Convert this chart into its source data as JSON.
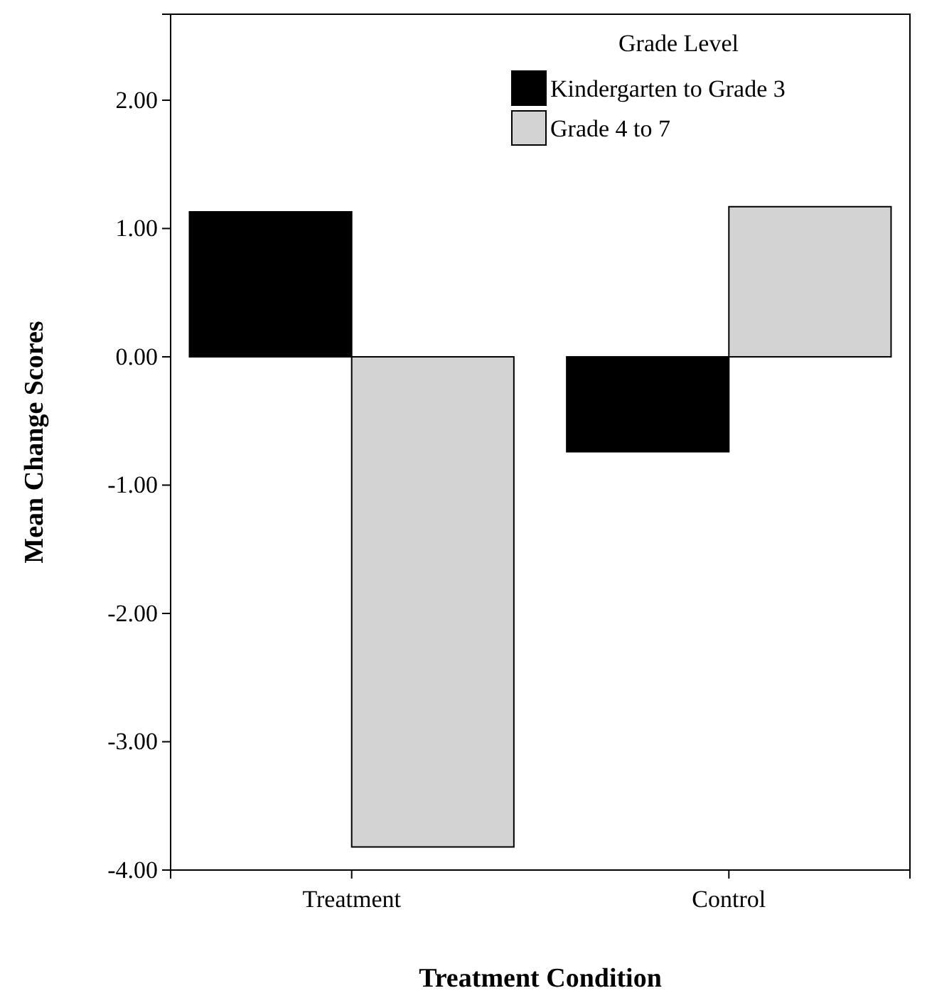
{
  "chart_data": {
    "type": "bar",
    "xlabel": "Treatment Condition",
    "ylabel": "Mean Change Scores",
    "legend_title": "Grade Level",
    "categories": [
      "Treatment",
      "Control"
    ],
    "series": [
      {
        "name": "Kindergarten to Grade 3",
        "color": "#000000",
        "values": [
          1.13,
          -0.74
        ]
      },
      {
        "name": "Grade 4 to 7",
        "color": "#d3d3d3",
        "values": [
          -3.82,
          1.17
        ]
      }
    ],
    "ylim": [
      -4,
      2.67
    ],
    "yticks": [
      {
        "value": -4,
        "label": "-4.00"
      },
      {
        "value": -3,
        "label": "-3.00"
      },
      {
        "value": -2,
        "label": "-2.00"
      },
      {
        "value": -1,
        "label": "-1.00"
      },
      {
        "value": 0,
        "label": "0.00"
      },
      {
        "value": 1,
        "label": "1.00"
      },
      {
        "value": 2,
        "label": "2.00"
      }
    ],
    "grid": false,
    "legend": "top right"
  }
}
